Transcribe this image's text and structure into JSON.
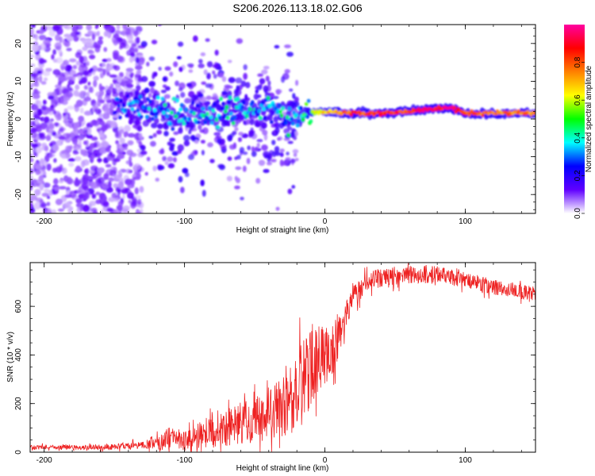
{
  "title": "S206.2026.113.18.02.G06",
  "chart_data": [
    {
      "type": "heatmap",
      "xlabel": "Height of straight line (km)",
      "ylabel": "Frequency (Hz)",
      "xlim": [
        -210,
        150
      ],
      "ylim": [
        -25,
        25
      ],
      "xticks": [
        -200,
        -100,
        0,
        100
      ],
      "yticks": [
        -20,
        -10,
        0,
        10,
        20
      ],
      "colorbar": {
        "label": "Normalized spectral amplitude",
        "ticks": [
          0.0,
          0.2,
          0.4,
          0.6,
          0.8
        ],
        "range": [
          0,
          1
        ],
        "stops": [
          "#ffffff",
          "#6000ff",
          "#0000ff",
          "#00ffff",
          "#00ff00",
          "#ffff00",
          "#ff8000",
          "#ff0000",
          "#ff00a0"
        ]
      },
      "ridge": [
        {
          "x": -150,
          "f": 3.5,
          "a": 0.35
        },
        {
          "x": -130,
          "f": 3.0,
          "a": 0.4
        },
        {
          "x": -110,
          "f": 1.5,
          "a": 0.45
        },
        {
          "x": -90,
          "f": 0.5,
          "a": 0.45
        },
        {
          "x": -70,
          "f": 2.0,
          "a": 0.5
        },
        {
          "x": -50,
          "f": 3.0,
          "a": 0.45
        },
        {
          "x": -30,
          "f": 0.5,
          "a": 0.5
        },
        {
          "x": -15,
          "f": 1.5,
          "a": 0.55
        },
        {
          "x": 0,
          "f": 2.0,
          "a": 0.7
        },
        {
          "x": 20,
          "f": 1.5,
          "a": 0.85
        },
        {
          "x": 40,
          "f": 1.5,
          "a": 0.9
        },
        {
          "x": 60,
          "f": 2.0,
          "a": 0.9
        },
        {
          "x": 75,
          "f": 2.5,
          "a": 0.95
        },
        {
          "x": 90,
          "f": 3.0,
          "a": 0.95
        },
        {
          "x": 100,
          "f": 1.5,
          "a": 0.85
        },
        {
          "x": 120,
          "f": 1.5,
          "a": 0.8
        },
        {
          "x": 150,
          "f": 1.5,
          "a": 0.8
        }
      ]
    },
    {
      "type": "line",
      "xlabel": "Height of straight line (km)",
      "ylabel": "SNR (10 * v/v)",
      "xlim": [
        -210,
        150
      ],
      "ylim": [
        0,
        780
      ],
      "xticks": [
        -200,
        -100,
        0,
        100
      ],
      "yticks": [
        0,
        200,
        400,
        600
      ],
      "color": "#ee2222",
      "series": [
        {
          "name": "SNR",
          "x": [
            -210,
            -180,
            -150,
            -130,
            -120,
            -100,
            -80,
            -60,
            -40,
            -30,
            -20,
            -15,
            -10,
            -5,
            0,
            5,
            10,
            15,
            20,
            30,
            40,
            60,
            80,
            100,
            120,
            140,
            150
          ],
          "mean": [
            20,
            20,
            22,
            30,
            40,
            55,
            80,
            120,
            160,
            190,
            240,
            300,
            340,
            380,
            400,
            430,
            480,
            560,
            640,
            700,
            720,
            730,
            730,
            710,
            680,
            660,
            650
          ],
          "noise": [
            12,
            12,
            14,
            20,
            40,
            60,
            80,
            110,
            140,
            160,
            200,
            220,
            200,
            180,
            160,
            140,
            120,
            80,
            60,
            50,
            50,
            45,
            45,
            40,
            40,
            40,
            40
          ]
        }
      ]
    }
  ]
}
